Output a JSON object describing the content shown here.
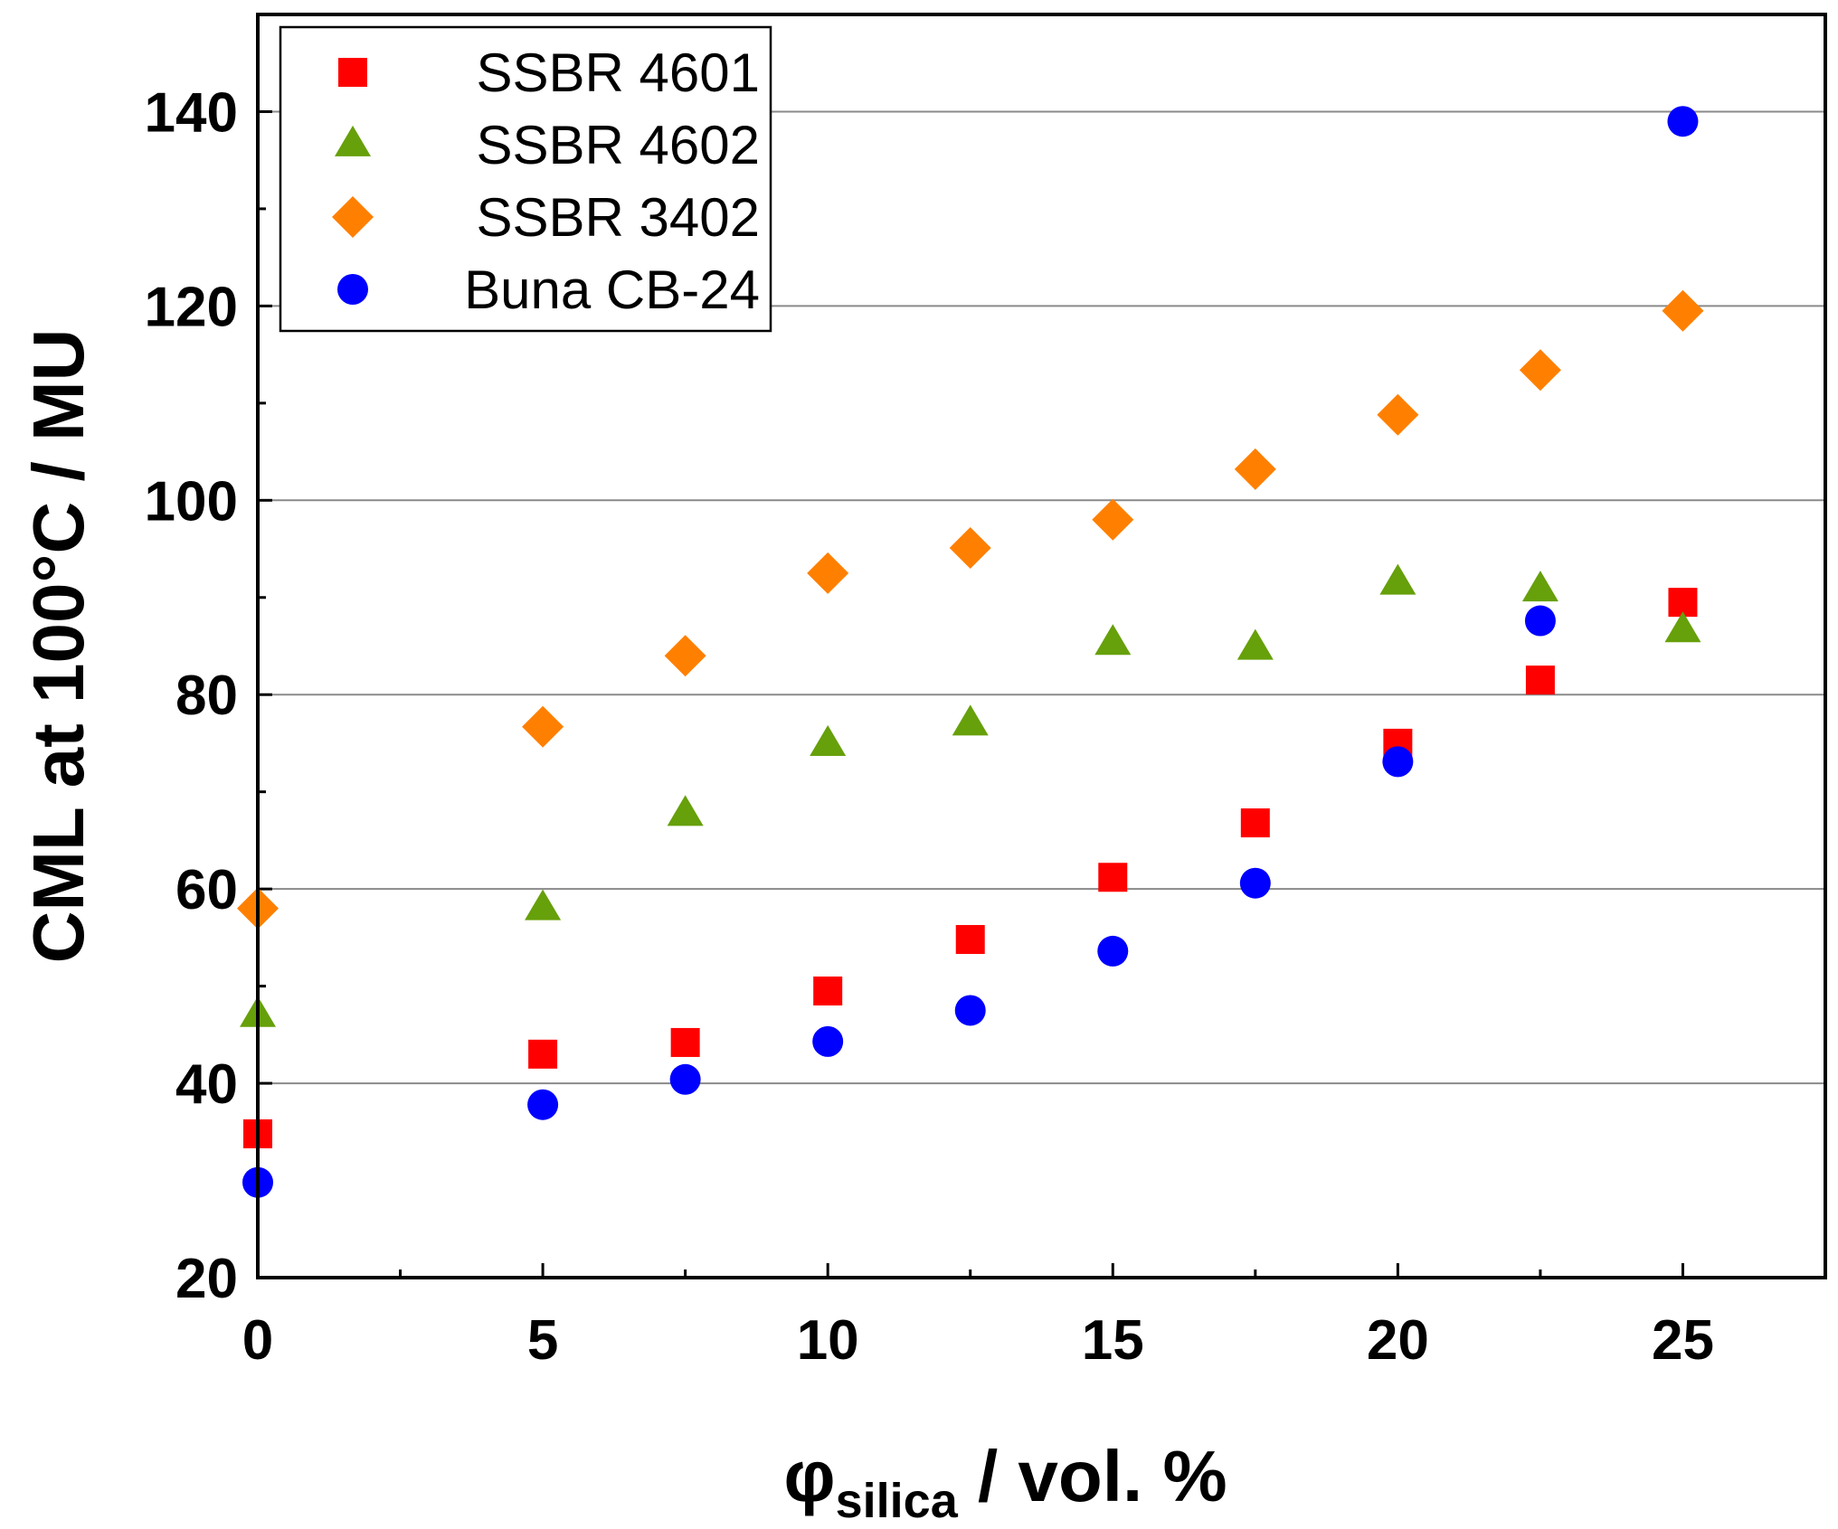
{
  "chart_data": {
    "type": "scatter",
    "title": "",
    "xlabel": {
      "symbol": "φ",
      "subscript": "silica",
      "suffix": " / vol. %"
    },
    "ylabel": "CML at 100°C / MU",
    "xlim": [
      0,
      27.5
    ],
    "ylim": [
      20,
      150
    ],
    "xticks": [
      0,
      5,
      10,
      15,
      20,
      25
    ],
    "xtick_labels": [
      "0",
      "5",
      "10",
      "15",
      "20",
      "25"
    ],
    "xminor": [
      2.5,
      7.5,
      12.5,
      17.5,
      22.5
    ],
    "yticks": [
      20,
      40,
      60,
      80,
      100,
      120,
      140
    ],
    "ytick_labels": [
      "20",
      "40",
      "60",
      "80",
      "100",
      "120",
      "140"
    ],
    "yminor": [
      30,
      50,
      70,
      90,
      110,
      130
    ],
    "gridlines_y": [
      40,
      60,
      80,
      100,
      120,
      140
    ],
    "grid": "horizontal",
    "legend_position": "top-left",
    "series": [
      {
        "name": "SSBR 4601",
        "marker": "square",
        "color": "#ff0000",
        "x": [
          0,
          5,
          7.5,
          10,
          12.5,
          15,
          17.5,
          20,
          22.5,
          25
        ],
        "y": [
          34.8,
          43,
          44.2,
          49.5,
          54.8,
          61.2,
          66.8,
          75,
          81.5,
          89.5
        ]
      },
      {
        "name": "SSBR 4602",
        "marker": "triangle",
        "color": "#66a00a",
        "x": [
          0,
          5,
          7.5,
          10,
          12.5,
          15,
          17.5,
          20,
          22.5,
          25
        ],
        "y": [
          47,
          58,
          67.7,
          74.9,
          77,
          85.3,
          84.8,
          91.5,
          90.8,
          86.6
        ]
      },
      {
        "name": "SSBR 3402",
        "marker": "diamond",
        "color": "#ff8000",
        "x": [
          0,
          5,
          7.5,
          10,
          12.5,
          15,
          17.5,
          20,
          22.5,
          25
        ],
        "y": [
          58,
          76.7,
          84,
          92.5,
          95.1,
          98,
          103.2,
          108.8,
          113.4,
          119.5
        ]
      },
      {
        "name": "Buna CB-24",
        "marker": "circle",
        "color": "#0000ff",
        "x": [
          0,
          5,
          7.5,
          10,
          12.5,
          15,
          17.5,
          20,
          22.5,
          25
        ],
        "y": [
          29.8,
          37.8,
          40.4,
          44.3,
          47.5,
          53.6,
          60.6,
          73.1,
          87.6,
          139
        ]
      }
    ]
  }
}
